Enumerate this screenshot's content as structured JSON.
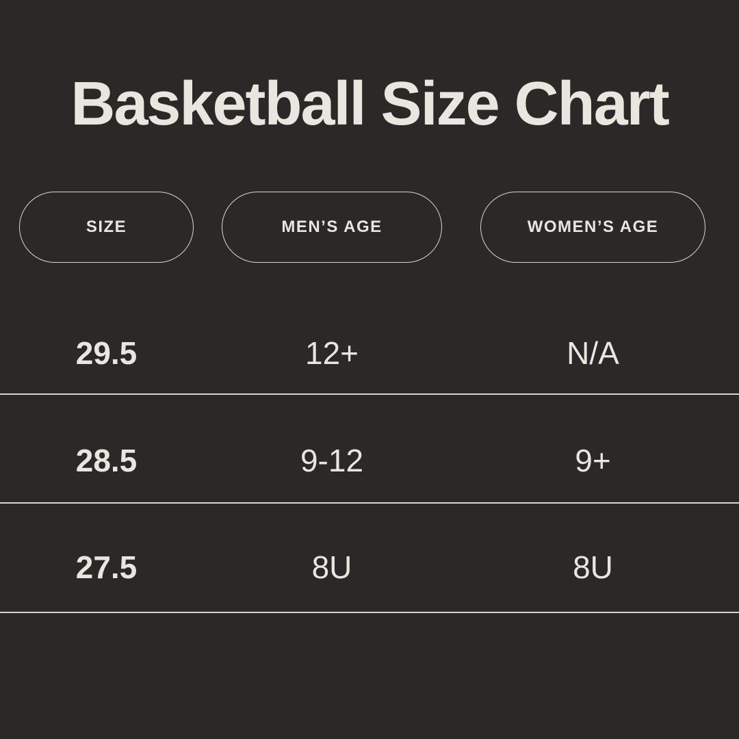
{
  "title": "Basketball Size Chart",
  "colors": {
    "background": "#2a2928",
    "text": "#e9e6e0",
    "divider": "#d8d5cf",
    "pill_border": "#dbd8d2"
  },
  "table": {
    "headers": [
      "SIZE",
      "MEN’S AGE",
      "WOMEN’S AGE"
    ],
    "rows": [
      {
        "size": "29.5",
        "mens_age": "12+",
        "womens_age": "N/A"
      },
      {
        "size": "28.5",
        "mens_age": "9-12",
        "womens_age": "9+"
      },
      {
        "size": "27.5",
        "mens_age": "8U",
        "womens_age": "8U"
      }
    ]
  },
  "chart_data": {
    "type": "table",
    "title": "Basketball Size Chart",
    "columns": [
      "SIZE",
      "MEN’S AGE",
      "WOMEN’S AGE"
    ],
    "rows": [
      [
        "29.5",
        "12+",
        "N/A"
      ],
      [
        "28.5",
        "9-12",
        "9+"
      ],
      [
        "27.5",
        "8U",
        "8U"
      ]
    ]
  }
}
